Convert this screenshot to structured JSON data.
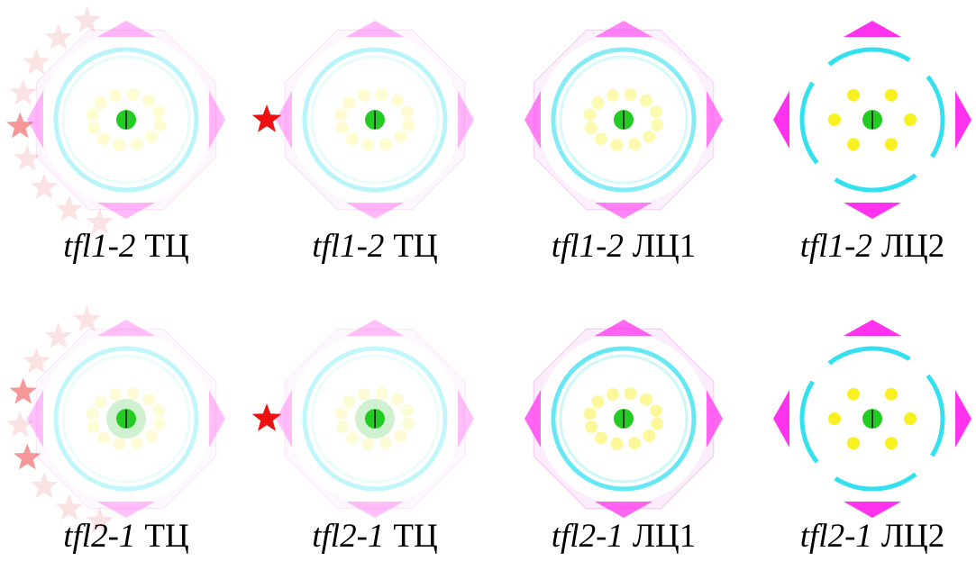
{
  "panels": [
    {
      "gene": "tfl1-2",
      "suffix": "ТЦ"
    },
    {
      "gene": "tfl1-2",
      "suffix": "ТЦ"
    },
    {
      "gene": "tfl1-2",
      "suffix": "ЛЦ1"
    },
    {
      "gene": "tfl1-2",
      "suffix": "ЛЦ2"
    },
    {
      "gene": "tfl2-1",
      "suffix": "ТЦ"
    },
    {
      "gene": "tfl2-1",
      "suffix": "ТЦ"
    },
    {
      "gene": "tfl2-1",
      "suffix": "ЛЦ1"
    },
    {
      "gene": "tfl2-1",
      "suffix": "ЛЦ2"
    }
  ]
}
